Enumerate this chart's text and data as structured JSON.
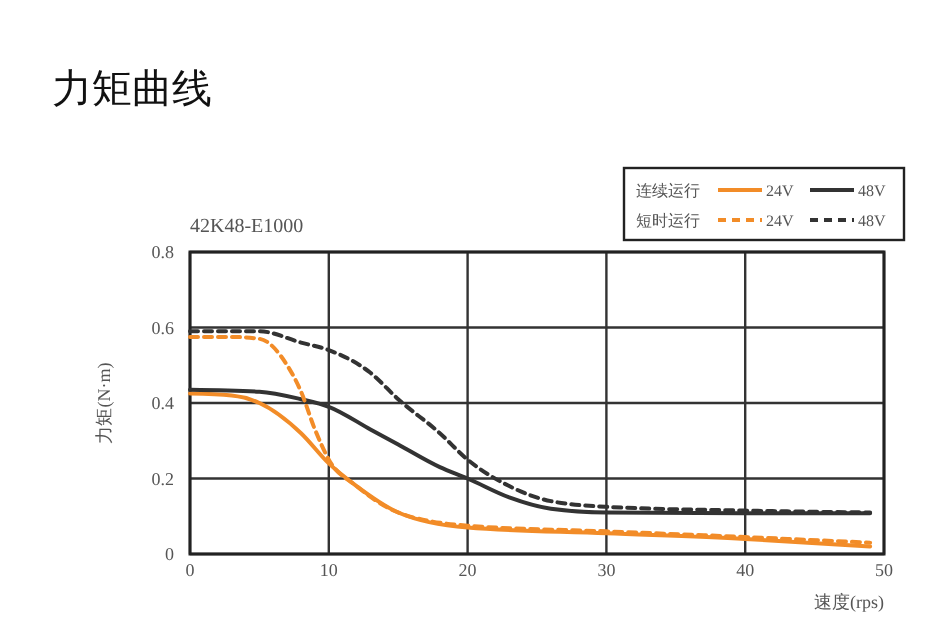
{
  "chart_data": {
    "type": "line",
    "title": "力矩曲线",
    "subtitle": "42K48-E1000",
    "xlabel": "速度(rps)",
    "ylabel": "力矩(N·m)",
    "annotations": [
      "连续运行",
      "短时运行"
    ],
    "xlim": [
      0,
      50
    ],
    "xticks": [
      0,
      10,
      20,
      30,
      40,
      50
    ],
    "ylim": [
      0,
      0.8
    ],
    "yticks": [
      0,
      0.2,
      0.4,
      0.6,
      0.8
    ],
    "grid": true,
    "legend": "top right",
    "series": [
      {
        "name": "24V",
        "color": "#f28c28",
        "line_style": "solid",
        "x": [
          0,
          3,
          5,
          8,
          10,
          12,
          15,
          20,
          30,
          40,
          49
        ],
        "values": [
          0.425,
          0.42,
          0.4,
          0.32,
          0.24,
          0.18,
          0.11,
          0.07,
          0.055,
          0.04,
          0.02
        ]
      },
      {
        "name": "48V",
        "color": "#333333",
        "line_style": "solid",
        "x": [
          0,
          5,
          8,
          10,
          13,
          15,
          18,
          20,
          23,
          26,
          30,
          40,
          49
        ],
        "values": [
          0.435,
          0.43,
          0.41,
          0.39,
          0.33,
          0.29,
          0.23,
          0.2,
          0.15,
          0.12,
          0.11,
          0.108,
          0.108
        ]
      },
      {
        "name": "24V",
        "color": "#f28c28",
        "line_style": "dashed",
        "x": [
          0,
          3,
          5,
          7,
          8,
          9,
          10,
          12,
          15,
          20,
          30,
          40,
          49
        ],
        "values": [
          0.575,
          0.575,
          0.57,
          0.5,
          0.43,
          0.33,
          0.25,
          0.18,
          0.11,
          0.075,
          0.06,
          0.045,
          0.03
        ]
      },
      {
        "name": "48V",
        "color": "#333333",
        "line_style": "dashed",
        "x": [
          0,
          5,
          8,
          10,
          13,
          15,
          18,
          20,
          23,
          26,
          30,
          40,
          49
        ],
        "values": [
          0.59,
          0.59,
          0.56,
          0.54,
          0.48,
          0.41,
          0.32,
          0.25,
          0.18,
          0.14,
          0.125,
          0.115,
          0.11
        ]
      }
    ]
  }
}
